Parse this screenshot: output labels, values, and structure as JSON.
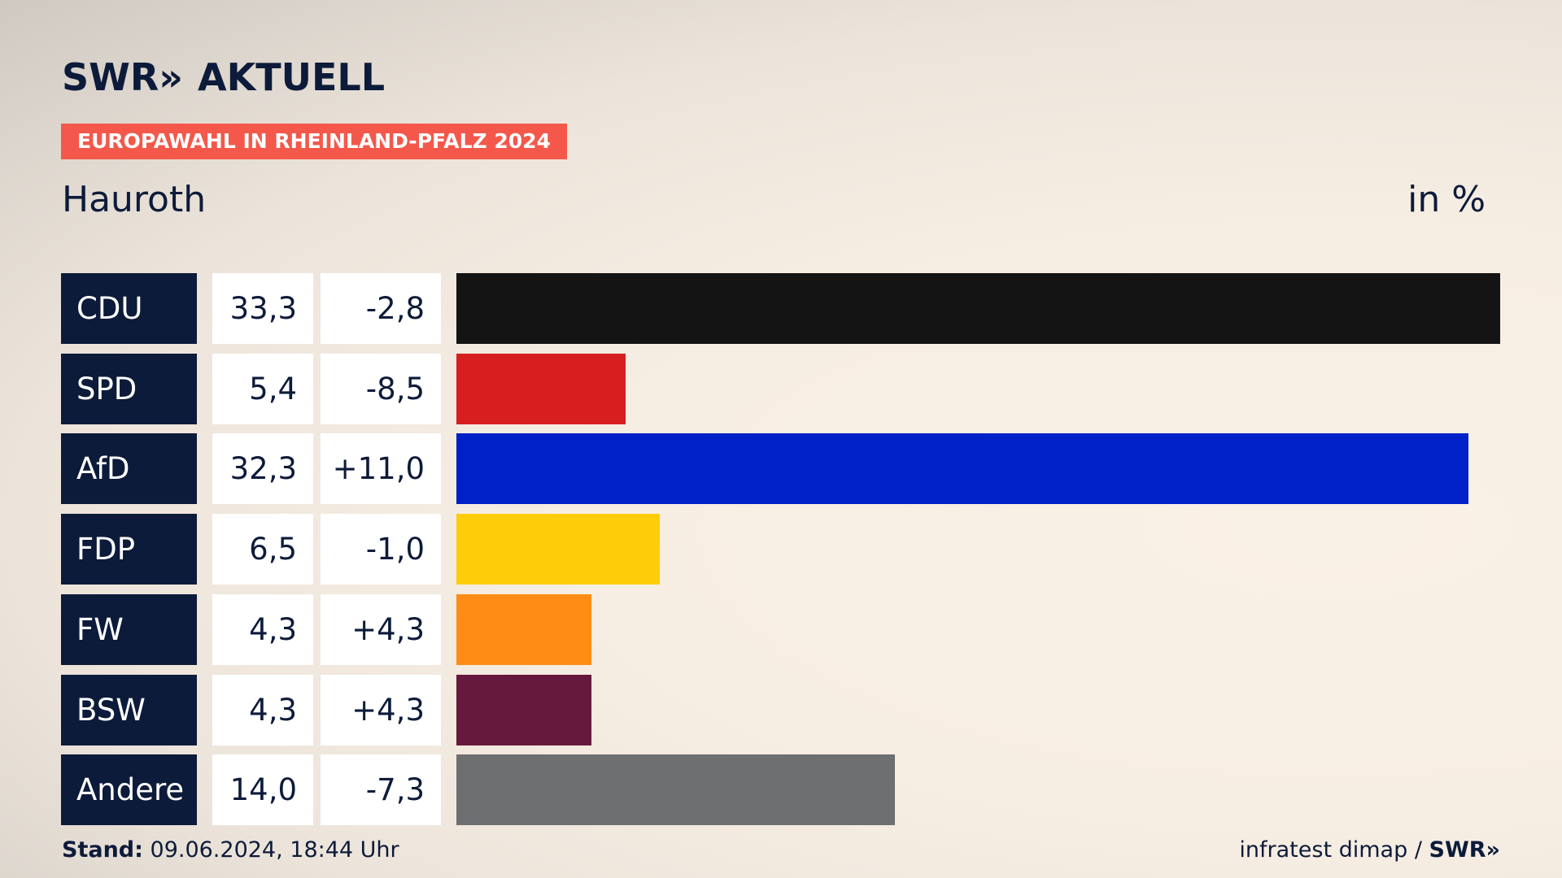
{
  "header": {
    "logo_text": "SWR",
    "logo_arrows": "»",
    "logo_suffix": "AKTUELL",
    "badge": "EUROPAWAHL IN RHEINLAND-PFALZ 2024",
    "badge_color": "#f4584a",
    "location": "Hauroth",
    "unit": "in %"
  },
  "chart_data": {
    "type": "bar",
    "orientation": "horizontal",
    "categories": [
      "CDU",
      "SPD",
      "AfD",
      "FDP",
      "FW",
      "BSW",
      "Andere"
    ],
    "values": [
      33.3,
      5.4,
      32.3,
      6.5,
      4.3,
      4.3,
      14.0
    ],
    "value_labels": [
      "33,3",
      "5,4",
      "32,3",
      "6,5",
      "4,3",
      "4,3",
      "14,0"
    ],
    "diff_labels": [
      "-2,8",
      "-8,5",
      "+11,0",
      "-1,0",
      "+4,3",
      "+4,3",
      "-7,3"
    ],
    "colors": [
      "#141414",
      "#d71f1f",
      "#0021c8",
      "#ffcc0a",
      "#ff8c14",
      "#66193d",
      "#6e6f71"
    ],
    "xlim": [
      0,
      33.3
    ]
  },
  "footer": {
    "stand_label": "Stand:",
    "stand_value": "09.06.2024, 18:44 Uhr",
    "source": "infratest dimap /",
    "source_logo": "SWR»"
  }
}
